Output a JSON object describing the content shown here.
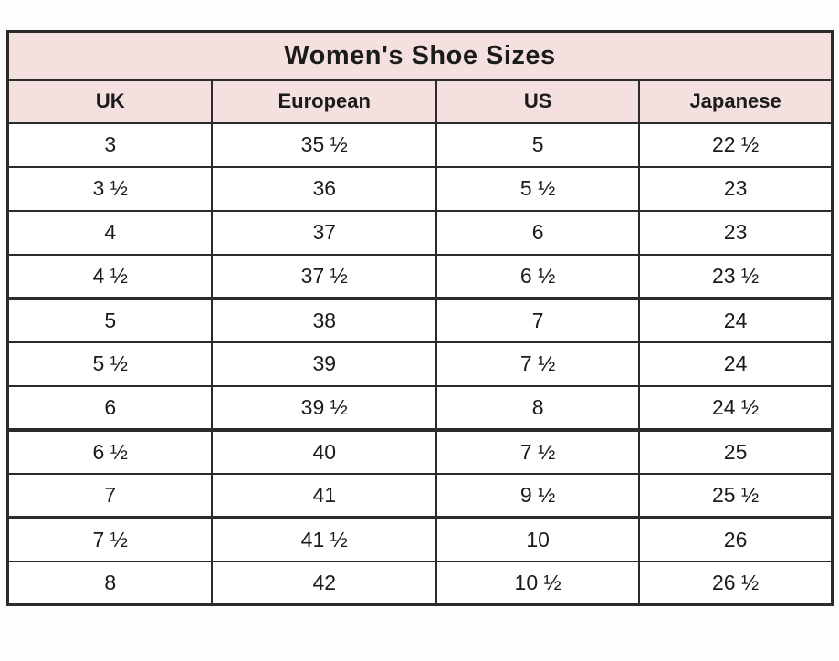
{
  "page": {
    "title": "Women's Shoe Sizes"
  },
  "colors": {
    "header_bg": "#f5e0e0",
    "border": "#2b2b2b",
    "text": "#1b1b1b",
    "page_bg": "#fefdfd"
  },
  "table": {
    "columns": [
      "UK",
      "European",
      "US",
      "Japanese"
    ],
    "column_widths_pct": [
      24.8,
      27.2,
      24.6,
      23.4
    ],
    "rows": [
      [
        "3",
        "35 ½",
        "5",
        "22 ½"
      ],
      [
        "3 ½",
        "36",
        "5 ½",
        "23"
      ],
      [
        "4",
        "37",
        "6",
        "23"
      ],
      [
        "4 ½",
        "37 ½",
        "6 ½",
        "23 ½"
      ],
      [
        "5",
        "38",
        "7",
        "24"
      ],
      [
        "5 ½",
        "39",
        "7 ½",
        "24"
      ],
      [
        "6",
        "39 ½",
        "8",
        "24 ½"
      ],
      [
        "6 ½",
        "40",
        "7 ½",
        "25"
      ],
      [
        "7",
        "41",
        "9 ½",
        "25 ½"
      ],
      [
        "7 ½",
        "41 ½",
        "10",
        "26"
      ],
      [
        "8",
        "42",
        "10 ½",
        "26 ½"
      ]
    ],
    "thick_separator_after_row_indexes": [
      3,
      6,
      8
    ]
  },
  "chart_data": {
    "type": "table",
    "title": "Women's Shoe Sizes",
    "columns": [
      "UK",
      "European",
      "US",
      "Japanese"
    ],
    "rows": [
      [
        "3",
        "35 ½",
        "5",
        "22 ½"
      ],
      [
        "3 ½",
        "36",
        "5 ½",
        "23"
      ],
      [
        "4",
        "37",
        "6",
        "23"
      ],
      [
        "4 ½",
        "37 ½",
        "6 ½",
        "23 ½"
      ],
      [
        "5",
        "38",
        "7",
        "24"
      ],
      [
        "5 ½",
        "39",
        "7 ½",
        "24"
      ],
      [
        "6",
        "39 ½",
        "8",
        "24 ½"
      ],
      [
        "6 ½",
        "40",
        "7 ½",
        "25"
      ],
      [
        "7",
        "41",
        "9 ½",
        "25 ½"
      ],
      [
        "7 ½",
        "41 ½",
        "10",
        "26"
      ],
      [
        "8",
        "42",
        "10 ½",
        "26 ½"
      ]
    ],
    "layout": {
      "title_band_bg": "#f5e0e0",
      "header_band_bg": "#f5e0e0",
      "grid": true,
      "thick_separators_after_data_rows": [
        4,
        7,
        9
      ]
    }
  }
}
